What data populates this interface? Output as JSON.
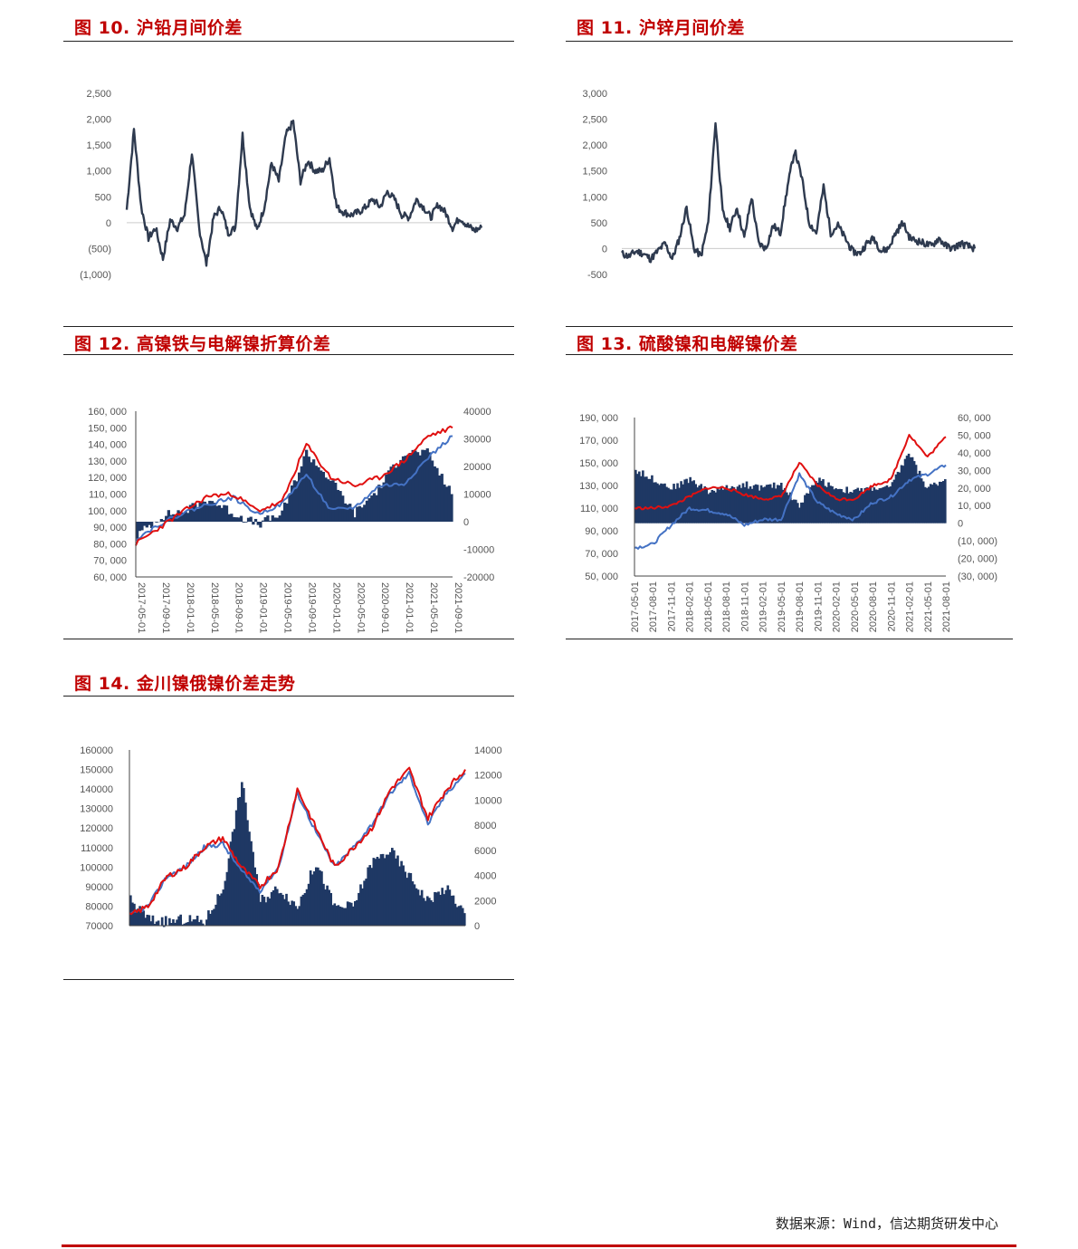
{
  "source": "数据来源：Wind，信达期货研发中心",
  "charts": [
    {
      "title": "图 10. 沪铅月间价差",
      "yticks": [
        "2,500",
        "2,000",
        "1,500",
        "1,000",
        "500",
        "0",
        "(500)",
        "(1,000)"
      ]
    },
    {
      "title": "图 11. 沪锌月间价差",
      "yticks": [
        "3,000",
        "2,500",
        "2,000",
        "1,500",
        "1,000",
        "500",
        "0",
        "-500"
      ]
    },
    {
      "title": "图 12. 高镍铁与电解镍折算价差",
      "yticks_left": [
        "160, 000",
        "150, 000",
        "140, 000",
        "130, 000",
        "120, 000",
        "110, 000",
        "100, 000",
        "90, 000",
        "80, 000",
        "70, 000",
        "60, 000"
      ],
      "yticks_right": [
        "40000",
        "30000",
        "20000",
        "10000",
        "0",
        "-10000",
        "-20000"
      ],
      "xticks": [
        "2017-05-01",
        "2017-09-01",
        "2018-01-01",
        "2018-05-01",
        "2018-09-01",
        "2019-01-01",
        "2019-05-01",
        "2019-09-01",
        "2020-01-01",
        "2020-05-01",
        "2020-09-01",
        "2021-01-01",
        "2021-05-01",
        "2021-09-01"
      ]
    },
    {
      "title": "图 13. 硫酸镍和电解镍价差",
      "yticks_left": [
        "190, 000",
        "170, 000",
        "150, 000",
        "130, 000",
        "110, 000",
        "90, 000",
        "70, 000",
        "50, 000"
      ],
      "yticks_right": [
        "60, 000",
        "50, 000",
        "40, 000",
        "30, 000",
        "20, 000",
        "10, 000",
        "0",
        "(10, 000)",
        "(20, 000)",
        "(30, 000)"
      ],
      "xticks": [
        "2017-05-01",
        "2017-08-01",
        "2017-11-01",
        "2018-02-01",
        "2018-05-01",
        "2018-08-01",
        "2018-11-01",
        "2019-02-01",
        "2019-05-01",
        "2019-08-01",
        "2019-11-01",
        "2020-02-01",
        "2020-05-01",
        "2020-08-01",
        "2020-11-01",
        "2021-02-01",
        "2021-05-01",
        "2021-08-01"
      ]
    },
    {
      "title": "图 14. 金川镍俄镍价差走势",
      "yticks_left": [
        "160000",
        "150000",
        "140000",
        "130000",
        "120000",
        "110000",
        "100000",
        "90000",
        "80000",
        "70000"
      ],
      "yticks_right": [
        "14000",
        "12000",
        "10000",
        "8000",
        "6000",
        "4000",
        "2000",
        "0"
      ]
    }
  ],
  "chart_data": [
    {
      "type": "line",
      "ylim": [
        -1000,
        2500
      ],
      "series": [
        {
          "values": [
            250,
            1800,
            300,
            -300,
            -100,
            -700,
            50,
            -100,
            150,
            1350,
            -100,
            -800,
            100,
            300,
            -200,
            -100,
            1700,
            300,
            -150,
            300,
            1150,
            800,
            1700,
            1950,
            800,
            1200,
            1000,
            1000,
            1250,
            300,
            200,
            150,
            200,
            300,
            450,
            300,
            600,
            450,
            150,
            100,
            450,
            300,
            100,
            350,
            200,
            -100,
            100,
            -50,
            -150,
            -100
          ]
        }
      ]
    },
    {
      "type": "line",
      "ylim": [
        -500,
        3000
      ],
      "series": [
        {
          "values": [
            -100,
            -150,
            -50,
            -100,
            -200,
            -50,
            100,
            -200,
            200,
            800,
            0,
            -150,
            500,
            2450,
            700,
            400,
            800,
            200,
            1000,
            100,
            0,
            450,
            300,
            1200,
            1900,
            1350,
            500,
            300,
            1200,
            300,
            450,
            200,
            -50,
            -100,
            100,
            200,
            -50,
            0,
            300,
            500,
            200,
            150,
            100,
            50,
            200,
            50,
            0,
            100,
            50,
            0
          ]
        }
      ]
    },
    {
      "type": "bar+line",
      "ylim": [
        60000,
        160000
      ],
      "y2lim": [
        -20000,
        40000
      ],
      "categories": [
        "2017-05",
        "2017-09",
        "2018-01",
        "2018-05",
        "2018-09",
        "2019-01",
        "2019-05",
        "2019-09",
        "2020-01",
        "2020-05",
        "2020-09",
        "2021-01",
        "2021-05",
        "2021-09"
      ],
      "series": [
        {
          "values": [
            80000,
            90000,
            100000,
            109000,
            110000,
            100000,
            105000,
            140000,
            120000,
            115000,
            120000,
            130000,
            145000,
            150000
          ]
        },
        {
          "values": [
            83000,
            92000,
            99000,
            104000,
            108000,
            98000,
            104000,
            122000,
            100000,
            102000,
            115000,
            116000,
            132000,
            145000
          ]
        },
        {
          "values": [
            -5000,
            2000,
            4000,
            8000,
            3000,
            -1000,
            3000,
            25000,
            15000,
            3000,
            12000,
            25000,
            25000,
            10000
          ]
        }
      ]
    },
    {
      "type": "bar+line",
      "ylim": [
        50000,
        190000
      ],
      "y2lim": [
        -30000,
        60000
      ],
      "categories": [
        "2017-05",
        "2017-08",
        "2017-11",
        "2018-02",
        "2018-05",
        "2018-08",
        "2018-11",
        "2019-02",
        "2019-05",
        "2019-08",
        "2019-11",
        "2020-02",
        "2020-05",
        "2020-08",
        "2020-11",
        "2021-02",
        "2021-05",
        "2021-08"
      ],
      "series": [
        {
          "values": [
            110000,
            110000,
            112000,
            120000,
            128000,
            128000,
            122000,
            118000,
            120000,
            150000,
            130000,
            118000,
            118000,
            130000,
            135000,
            175000,
            155000,
            173000
          ]
        },
        {
          "values": [
            75000,
            78000,
            95000,
            110000,
            108000,
            105000,
            95000,
            100000,
            100000,
            140000,
            115000,
            105000,
            100000,
            115000,
            120000,
            135000,
            140000,
            148000
          ]
        },
        {
          "values": [
            30000,
            25000,
            20000,
            25000,
            18000,
            20000,
            22000,
            20000,
            22000,
            10000,
            25000,
            20000,
            18000,
            20000,
            20000,
            40000,
            20000,
            25000
          ]
        }
      ]
    },
    {
      "type": "bar+line",
      "ylim": [
        70000,
        160000
      ],
      "y2lim": [
        0,
        14000
      ],
      "series": [
        {
          "values": [
            75000,
            80000,
            95000,
            100000,
            110000,
            115000,
            100000,
            90000,
            100000,
            140000,
            120000,
            100000,
            110000,
            120000,
            140000,
            150000,
            125000,
            140000,
            150000
          ]
        },
        {
          "values": [
            75000,
            80000,
            95000,
            100000,
            110000,
            112000,
            98000,
            88000,
            100000,
            138000,
            118000,
            100000,
            110000,
            122000,
            138000,
            148000,
            122000,
            138000,
            148000
          ]
        },
        {
          "values": [
            2000,
            500,
            300,
            500,
            300,
            3000,
            11500,
            2000,
            3000,
            1500,
            5000,
            1500,
            1500,
            5000,
            6000,
            4000,
            2000,
            3000,
            1000
          ]
        }
      ]
    }
  ]
}
